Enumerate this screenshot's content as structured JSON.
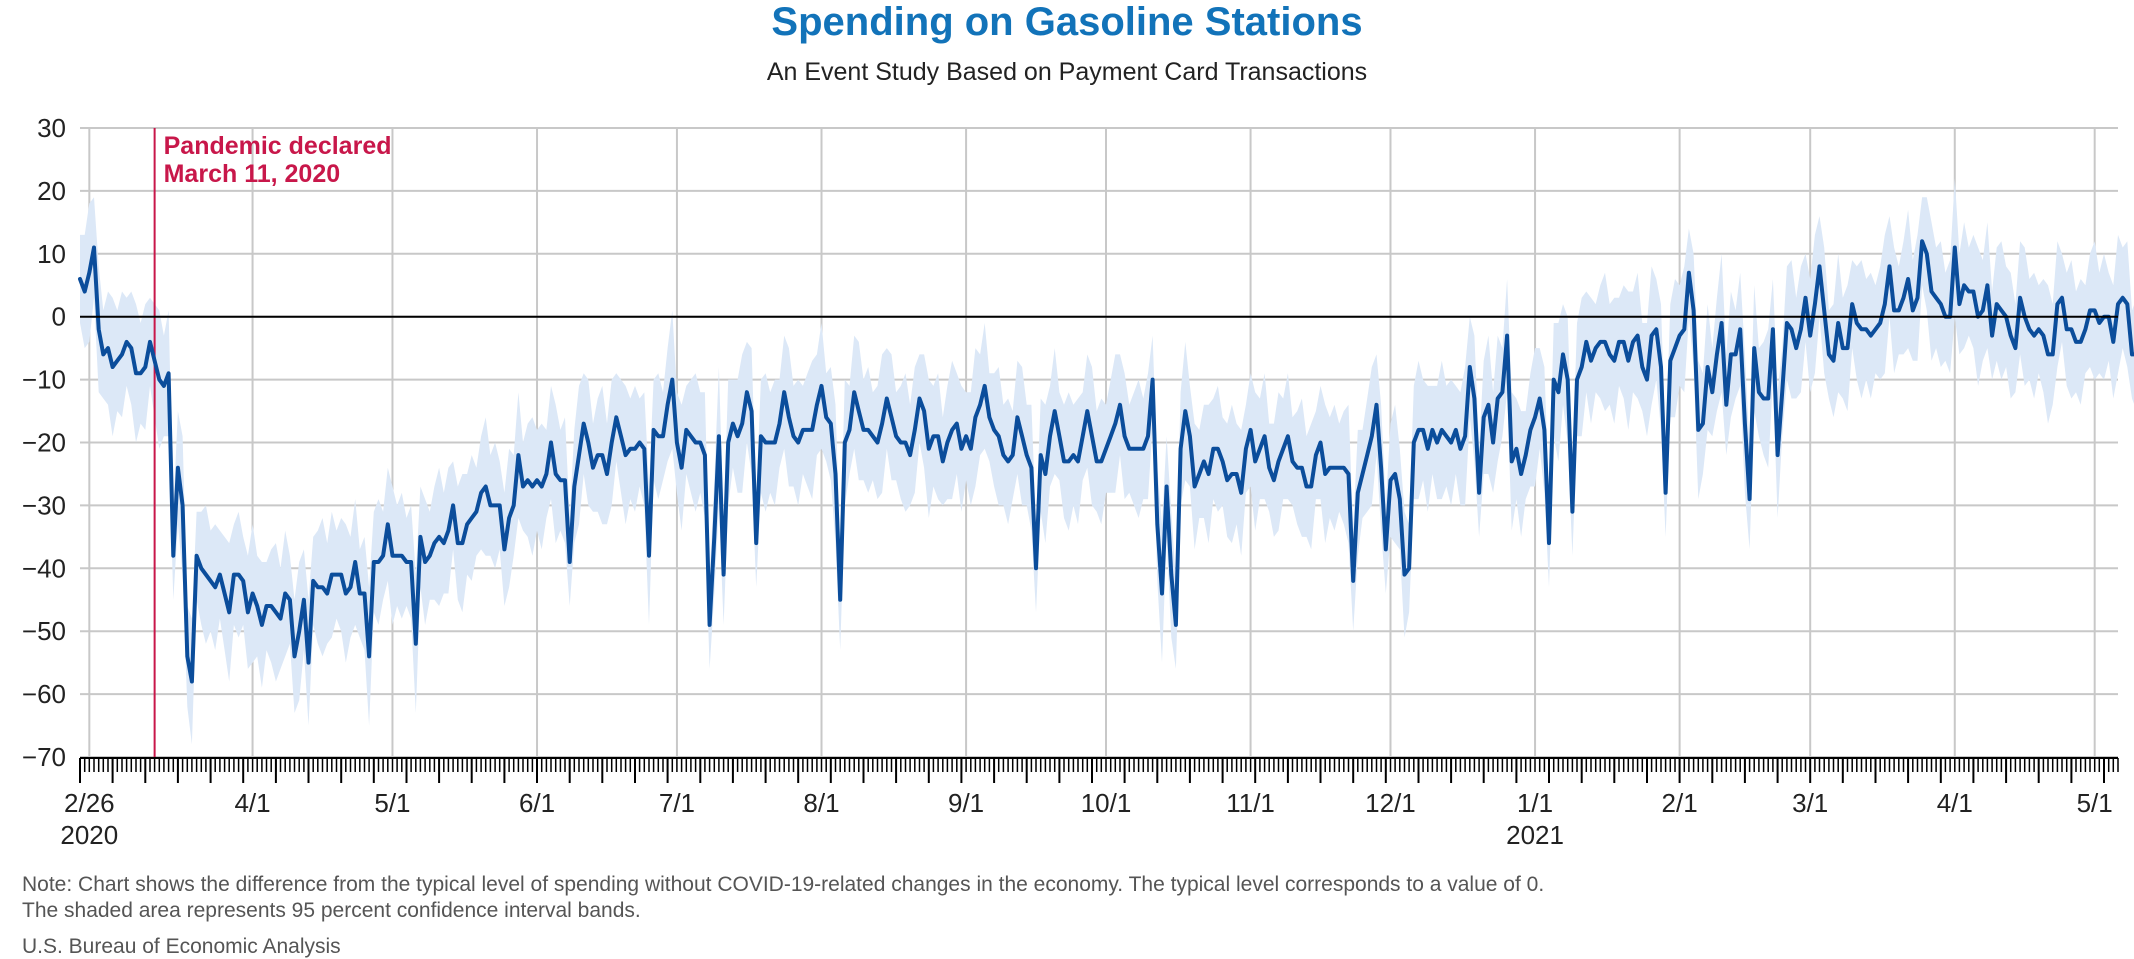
{
  "chart_data": {
    "type": "line",
    "title": "Spending on Gasoline Stations",
    "subtitle": "An Event Study Based on Payment Card Transactions",
    "xlabel": "",
    "ylabel": "",
    "ylim": [
      -70,
      30
    ],
    "yticks": [
      30,
      20,
      10,
      0,
      -10,
      -20,
      -30,
      -40,
      -50,
      -60,
      -70
    ],
    "xlim": [
      "2020-02-24",
      "2021-05-06"
    ],
    "xticks": [
      {
        "date": "2020-02-26",
        "label": "2/26",
        "sublabel": "2020"
      },
      {
        "date": "2020-04-01",
        "label": "4/1"
      },
      {
        "date": "2020-05-01",
        "label": "5/1"
      },
      {
        "date": "2020-06-01",
        "label": "6/1"
      },
      {
        "date": "2020-07-01",
        "label": "7/1"
      },
      {
        "date": "2020-08-01",
        "label": "8/1"
      },
      {
        "date": "2020-09-01",
        "label": "9/1"
      },
      {
        "date": "2020-10-01",
        "label": "10/1"
      },
      {
        "date": "2020-11-01",
        "label": "11/1"
      },
      {
        "date": "2020-12-01",
        "label": "12/1"
      },
      {
        "date": "2021-01-01",
        "label": "1/1",
        "sublabel": "2021"
      },
      {
        "date": "2021-02-01",
        "label": "2/1"
      },
      {
        "date": "2021-03-01",
        "label": "3/1"
      },
      {
        "date": "2021-04-01",
        "label": "4/1"
      },
      {
        "date": "2021-05-01",
        "label": "5/1"
      }
    ],
    "grid": true,
    "annotation": {
      "date": "2020-03-11",
      "line1": "Pandemic declared",
      "line2": "March 11, 2020"
    },
    "colors": {
      "line": "#0b4d9b",
      "band": "#dce8f7",
      "annotation": "#c8174a",
      "title": "#1273b9",
      "grid": "#c8c8c8",
      "zero": "#000000"
    },
    "series": [
      {
        "type": "line",
        "start_date": "2020-02-24",
        "band_halfwidth": 9,
        "values": [
          6,
          4,
          7,
          11,
          -2,
          -6,
          -5,
          -8,
          -7,
          -6,
          -4,
          -5,
          -9,
          -9,
          -8,
          -4,
          -7,
          -10,
          -11,
          -9,
          -38,
          -24,
          -30,
          -54,
          -58,
          -38,
          -40,
          -41,
          -42,
          -43,
          -41,
          -44,
          -47,
          -41,
          -41,
          -42,
          -47,
          -44,
          -46,
          -49,
          -46,
          -46,
          -47,
          -48,
          -44,
          -45,
          -54,
          -50,
          -45,
          -55,
          -42,
          -43,
          -43,
          -44,
          -41,
          -41,
          -41,
          -44,
          -43,
          -39,
          -44,
          -44,
          -54,
          -39,
          -39,
          -38,
          -33,
          -38,
          -38,
          -38,
          -39,
          -39,
          -52,
          -35,
          -39,
          -38,
          -36,
          -35,
          -36,
          -34,
          -30,
          -36,
          -36,
          -33,
          -32,
          -31,
          -28,
          -27,
          -30,
          -30,
          -30,
          -37,
          -32,
          -30,
          -22,
          -27,
          -26,
          -27,
          -26,
          -27,
          -25,
          -20,
          -25,
          -26,
          -26,
          -39,
          -27,
          -22,
          -17,
          -20,
          -24,
          -22,
          -22,
          -25,
          -20,
          -16,
          -19,
          -22,
          -21,
          -21,
          -20,
          -21,
          -38,
          -18,
          -19,
          -19,
          -14,
          -10,
          -20,
          -24,
          -18,
          -19,
          -20,
          -20,
          -22,
          -49,
          -35,
          -19,
          -41,
          -20,
          -17,
          -19,
          -17,
          -12,
          -15,
          -36,
          -19,
          -20,
          -20,
          -20,
          -17,
          -12,
          -16,
          -19,
          -20,
          -18,
          -18,
          -18,
          -14,
          -11,
          -16,
          -17,
          -25,
          -45,
          -20,
          -18,
          -12,
          -15,
          -18,
          -18,
          -19,
          -20,
          -17,
          -13,
          -16,
          -19,
          -20,
          -20,
          -22,
          -18,
          -13,
          -15,
          -21,
          -19,
          -19,
          -23,
          -20,
          -18,
          -17,
          -21,
          -19,
          -21,
          -16,
          -14,
          -11,
          -16,
          -18,
          -19,
          -22,
          -23,
          -22,
          -16,
          -19,
          -22,
          -24,
          -40,
          -22,
          -25,
          -19,
          -15,
          -19,
          -23,
          -23,
          -22,
          -23,
          -19,
          -15,
          -19,
          -23,
          -23,
          -21,
          -19,
          -17,
          -14,
          -19,
          -21,
          -21,
          -21,
          -21,
          -19,
          -10,
          -33,
          -44,
          -27,
          -41,
          -49,
          -21,
          -15,
          -19,
          -27,
          -25,
          -23,
          -25,
          -21,
          -21,
          -23,
          -26,
          -25,
          -25,
          -28,
          -21,
          -18,
          -23,
          -21,
          -19,
          -24,
          -26,
          -23,
          -21,
          -19,
          -23,
          -24,
          -24,
          -27,
          -27,
          -22,
          -20,
          -25,
          -24,
          -24,
          -24,
          -24,
          -25,
          -42,
          -28,
          -25,
          -22,
          -19,
          -14,
          -24,
          -37,
          -26,
          -25,
          -29,
          -41,
          -40,
          -20,
          -18,
          -18,
          -21,
          -18,
          -20,
          -18,
          -19,
          -20,
          -18,
          -21,
          -19,
          -8,
          -13,
          -28,
          -16,
          -14,
          -20,
          -13,
          -12,
          -3,
          -23,
          -21,
          -25,
          -22,
          -18,
          -16,
          -13,
          -18,
          -36,
          -10,
          -12,
          -6,
          -10,
          -31,
          -10,
          -8,
          -4,
          -7,
          -5,
          -4,
          -4,
          -6,
          -7,
          -4,
          -4,
          -7,
          -4,
          -3,
          -8,
          -10,
          -3,
          -2,
          -8,
          -28,
          -7,
          -5,
          -3,
          -2,
          7,
          1,
          -18,
          -17,
          -8,
          -12,
          -6,
          -1,
          -14,
          -6,
          -6,
          -2,
          -17,
          -29,
          -5,
          -12,
          -13,
          -13,
          -2,
          -22,
          -12,
          -1,
          -2,
          -5,
          -2,
          3,
          -3,
          2,
          8,
          1,
          -6,
          -7,
          -1,
          -5,
          -5,
          2,
          -1,
          -2,
          -2,
          -3,
          -2,
          -1,
          2,
          8,
          1,
          1,
          3,
          6,
          1,
          3,
          12,
          10,
          4,
          3,
          2,
          0,
          0,
          11,
          2,
          5,
          4,
          4,
          0,
          1,
          5,
          -3,
          2,
          1,
          0,
          -3,
          -5,
          3,
          0,
          -2,
          -3,
          -2,
          -3,
          -6,
          -6,
          2,
          3,
          -2,
          -2,
          -4,
          -4,
          -2,
          1,
          1,
          -1,
          0,
          0,
          -4,
          2,
          3,
          2,
          -6,
          -6,
          -7,
          -5
        ]
      }
    ]
  },
  "note": {
    "line1": "Note: Chart shows the difference from the typical level of spending without COVID-19-related changes in the economy. The typical level corresponds to a value of 0.",
    "line2": "The shaded area represents 95 percent confidence interval bands."
  },
  "source": "U.S. Bureau of Economic Analysis"
}
